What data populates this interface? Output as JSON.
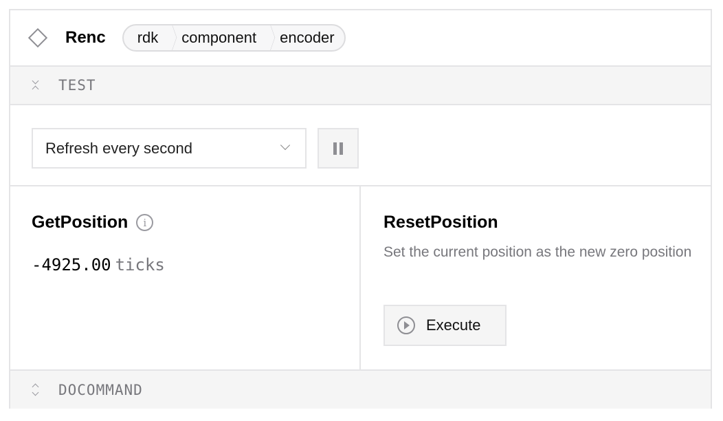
{
  "header": {
    "title": "Renc",
    "icon": "diamond-icon",
    "breadcrumbs": [
      "rdk",
      "component",
      "encoder"
    ]
  },
  "sections": {
    "test": "TEST",
    "docommand": "DOCOMMAND"
  },
  "controls": {
    "refresh_select": "Refresh every second",
    "pause_icon": "pause-icon"
  },
  "get_position": {
    "title": "GetPosition",
    "value": "-4925.00",
    "unit": "ticks"
  },
  "reset_position": {
    "title": "ResetPosition",
    "description": "Set the current position as the new zero position",
    "execute_label": "Execute"
  }
}
